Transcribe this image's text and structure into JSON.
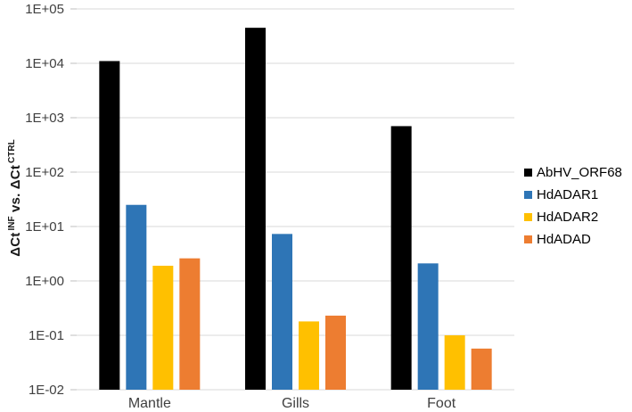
{
  "chart_data": {
    "type": "bar",
    "title": "",
    "y_scale": "log10",
    "ylim": [
      0.01,
      100000
    ],
    "grid": true,
    "legend_position": "right",
    "ylabel_text": "ΔCt INF vs. ΔCt CTRL",
    "ylabel_parts": [
      "ΔCt",
      "INF",
      " vs. ",
      "ΔCt",
      "CTRL"
    ],
    "y_ticks": [
      {
        "label": "1E+05",
        "exp": 5
      },
      {
        "label": "1E+04",
        "exp": 4
      },
      {
        "label": "1E+03",
        "exp": 3
      },
      {
        "label": "1E+02",
        "exp": 2
      },
      {
        "label": "1E+01",
        "exp": 1
      },
      {
        "label": "1E+00",
        "exp": 0
      },
      {
        "label": "1E-01",
        "exp": -1
      },
      {
        "label": "1E-02",
        "exp": -2
      }
    ],
    "categories": [
      "Mantle",
      "Gills",
      "Foot"
    ],
    "series": [
      {
        "name": "AbHV_ORF68",
        "color": "#000000",
        "values": [
          11000,
          45000,
          700
        ]
      },
      {
        "name": "HdADAR1",
        "color": "#2E75B6",
        "values": [
          25,
          7.3,
          2.1
        ]
      },
      {
        "name": "HdADAR2",
        "color": "#FFC000",
        "values": [
          1.9,
          0.18,
          0.1
        ]
      },
      {
        "name": "HdADAD",
        "color": "#ED7D31",
        "values": [
          2.6,
          0.23,
          0.057
        ]
      }
    ],
    "colors": {
      "background": "#FFFFFF",
      "gridline": "#D9D9D9",
      "axis_line": "#D9D9D9",
      "tick": "#BFBFBF",
      "tick_label": "#404040",
      "category_label": "#404040",
      "legend_text": "#000000"
    }
  }
}
